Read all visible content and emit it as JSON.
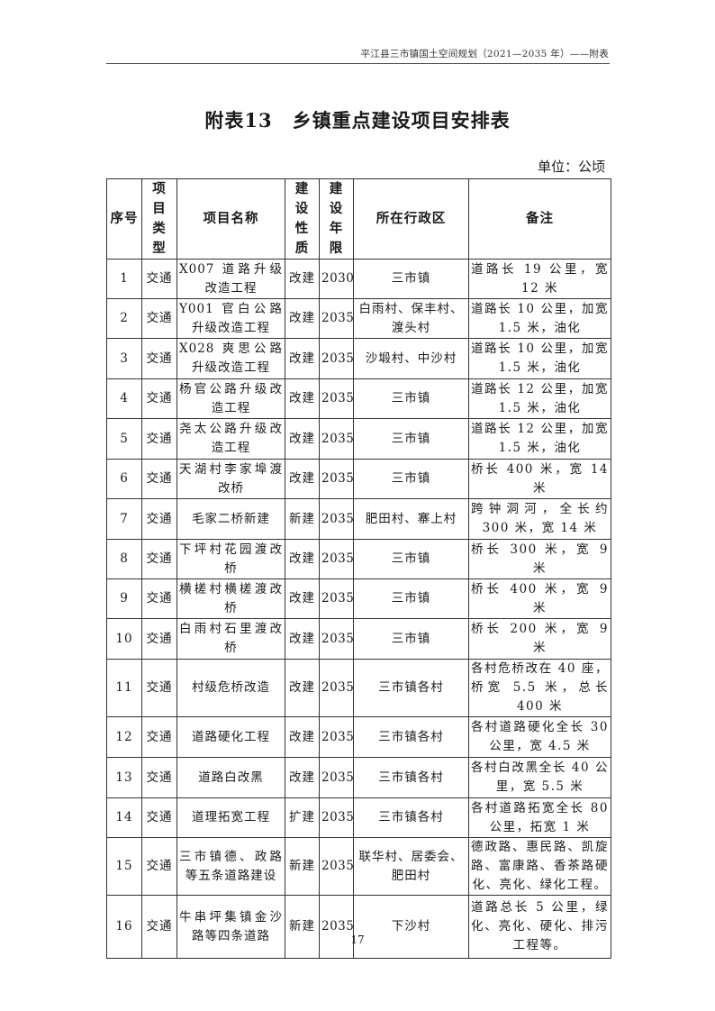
{
  "header": {
    "running_title": "平江县三市镇国土空间规划（2021—2035 年）——附表"
  },
  "title": "附表13　乡镇重点建设项目安排表",
  "unit": "单位：公顷",
  "table": {
    "columns": [
      "序号",
      "项目类型",
      "项目名称",
      "建设性质",
      "建设年限",
      "所在行政区",
      "备注"
    ],
    "rows": [
      [
        "1",
        "交通",
        "X007 道路升级改造工程",
        "改建",
        "2030",
        "三市镇",
        "道路长 19 公里，宽 12 米"
      ],
      [
        "2",
        "交通",
        "Y001 官白公路升级改造工程",
        "改建",
        "2035",
        "白雨村、保丰村、渡头村",
        "道路长 10 公里，加宽 1.5 米，油化"
      ],
      [
        "3",
        "交通",
        "X028 爽思公路升级改造工程",
        "改建",
        "2035",
        "沙塅村、中沙村",
        "道路长 10 公里，加宽 1.5 米，油化"
      ],
      [
        "4",
        "交通",
        "杨官公路升级改造工程",
        "改建",
        "2035",
        "三市镇",
        "道路长 12 公里，加宽 1.5 米，油化"
      ],
      [
        "5",
        "交通",
        "尧太公路升级改造工程",
        "改建",
        "2035",
        "三市镇",
        "道路长 12 公里，加宽 1.5 米，油化"
      ],
      [
        "6",
        "交通",
        "天湖村李家埠渡改桥",
        "改建",
        "2035",
        "三市镇",
        "桥长 400 米，宽 14 米"
      ],
      [
        "7",
        "交通",
        "毛家二桥新建",
        "新建",
        "2035",
        "肥田村、寨上村",
        "跨钟洞河，全长约 300 米，宽 14 米"
      ],
      [
        "8",
        "交通",
        "下坪村花园渡改桥",
        "改建",
        "2035",
        "三市镇",
        "桥长 300 米，宽 9 米"
      ],
      [
        "9",
        "交通",
        "横槎村横槎渡改桥",
        "改建",
        "2035",
        "三市镇",
        "桥长 400 米，宽 9 米"
      ],
      [
        "10",
        "交通",
        "白雨村石里渡改桥",
        "改建",
        "2035",
        "三市镇",
        "桥长 200 米，宽 9 米"
      ],
      [
        "11",
        "交通",
        "村级危桥改造",
        "改建",
        "2035",
        "三市镇各村",
        "各村危桥改在 40 座，桥宽 5.5 米，总长 400 米"
      ],
      [
        "12",
        "交通",
        "道路硬化工程",
        "改建",
        "2035",
        "三市镇各村",
        "各村道路硬化全长 30 公里，宽 4.5 米"
      ],
      [
        "13",
        "交通",
        "道路白改黑",
        "改建",
        "2035",
        "三市镇各村",
        "各村白改黑全长 40 公里，宽 5.5 米"
      ],
      [
        "14",
        "交通",
        "道理拓宽工程",
        "扩建",
        "2035",
        "三市镇各村",
        "各村道路拓宽全长 80 公里，拓宽 1 米"
      ],
      [
        "15",
        "交通",
        "三市镇德、政路等五条道路建设",
        "新建",
        "2035",
        "联华村、居委会、肥田村",
        "德政路、惠民路、凯旋路、富康路、香茶路硬化、亮化、绿化工程。"
      ],
      [
        "16",
        "交通",
        "牛串坪集镇金沙路等四条道路",
        "新建",
        "2035",
        "下沙村",
        "道路总长 5 公里，绿化、亮化、硬化、排污工程等。"
      ]
    ]
  },
  "page_number": "17"
}
